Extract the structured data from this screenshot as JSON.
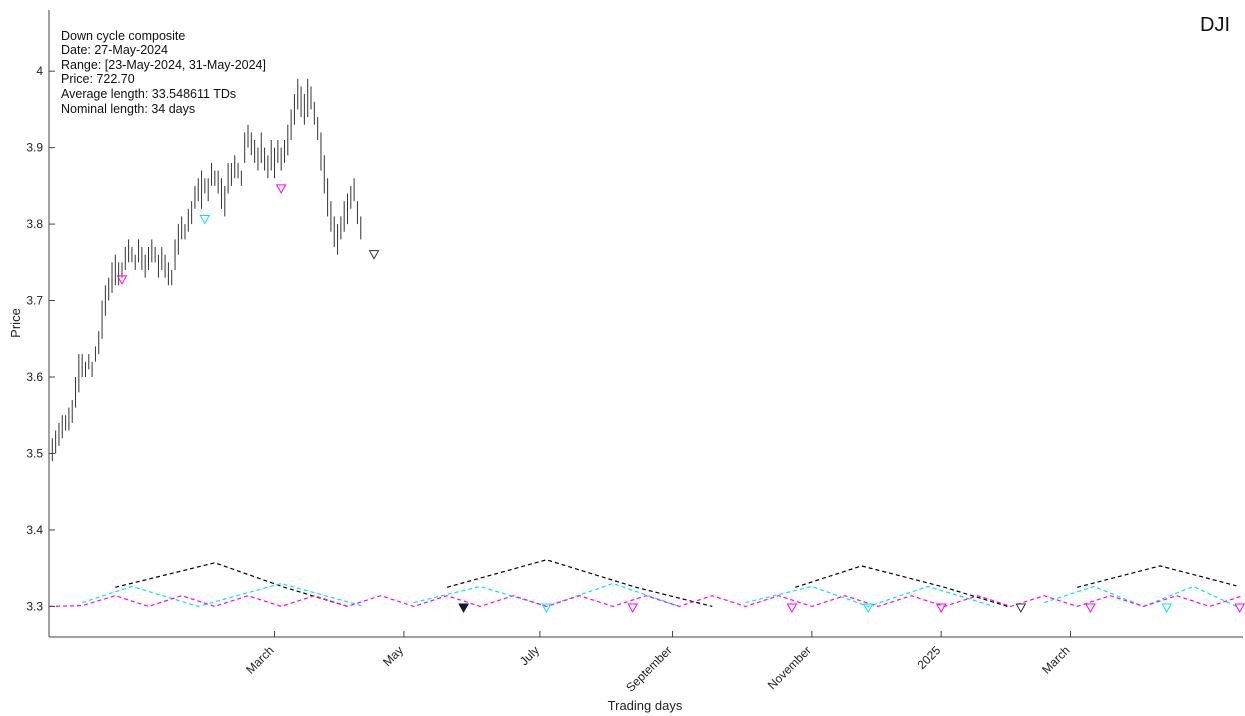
{
  "symbol": "DJI",
  "info_lines": [
    "Down cycle composite",
    "Date: 27-May-2024",
    "Range: [23-May-2024, 31-May-2024]",
    "Price: 722.70",
    "Average length: 33.548611 TDs",
    "Nominal length: 34 days"
  ],
  "colors": {
    "price": "#333333",
    "cycle_long": "#000000",
    "cycle_mid": "#00e5ff",
    "cycle_short": "#ff00ff",
    "filled_marker": "#0b1a3a"
  },
  "chart_data": {
    "type": "line",
    "xlabel": "Trading days",
    "ylabel": "Price",
    "ylim": [
      3.26,
      4.08
    ],
    "xlim": [
      0,
      360
    ],
    "yticks": [
      3.3,
      3.4,
      3.5,
      3.6,
      3.7,
      3.8,
      3.9,
      4
    ],
    "ytick_labels": [
      "3.3",
      "3.4",
      "3.5",
      "3.6",
      "3.7",
      "3.8",
      "3.9",
      "4"
    ],
    "xticks": [
      {
        "x": 68,
        "label": "March"
      },
      {
        "x": 107,
        "label": "May"
      },
      {
        "x": 148,
        "label": "July"
      },
      {
        "x": 188,
        "label": "September"
      },
      {
        "x": 230,
        "label": "November"
      },
      {
        "x": 269,
        "label": "2025"
      },
      {
        "x": 308,
        "label": "March"
      }
    ],
    "grid": false,
    "price_bars": [
      [
        1,
        3.49,
        3.52
      ],
      [
        2,
        3.5,
        3.53
      ],
      [
        3,
        3.51,
        3.54
      ],
      [
        4,
        3.52,
        3.55
      ],
      [
        5,
        3.53,
        3.55
      ],
      [
        6,
        3.53,
        3.56
      ],
      [
        7,
        3.54,
        3.57
      ],
      [
        8,
        3.56,
        3.6
      ],
      [
        9,
        3.58,
        3.63
      ],
      [
        10,
        3.6,
        3.63
      ],
      [
        11,
        3.6,
        3.62
      ],
      [
        12,
        3.61,
        3.63
      ],
      [
        13,
        3.6,
        3.62
      ],
      [
        14,
        3.62,
        3.64
      ],
      [
        15,
        3.63,
        3.66
      ],
      [
        16,
        3.65,
        3.7
      ],
      [
        17,
        3.68,
        3.72
      ],
      [
        18,
        3.7,
        3.73
      ],
      [
        19,
        3.71,
        3.75
      ],
      [
        20,
        3.72,
        3.76
      ],
      [
        21,
        3.72,
        3.75
      ],
      [
        22,
        3.73,
        3.75
      ],
      [
        23,
        3.74,
        3.77
      ],
      [
        24,
        3.75,
        3.78
      ],
      [
        25,
        3.75,
        3.77
      ],
      [
        26,
        3.74,
        3.76
      ],
      [
        27,
        3.75,
        3.78
      ],
      [
        28,
        3.74,
        3.77
      ],
      [
        29,
        3.73,
        3.76
      ],
      [
        30,
        3.74,
        3.77
      ],
      [
        31,
        3.75,
        3.78
      ],
      [
        32,
        3.75,
        3.77
      ],
      [
        33,
        3.73,
        3.76
      ],
      [
        34,
        3.74,
        3.77
      ],
      [
        35,
        3.73,
        3.76
      ],
      [
        36,
        3.72,
        3.75
      ],
      [
        37,
        3.72,
        3.74
      ],
      [
        38,
        3.74,
        3.78
      ],
      [
        39,
        3.76,
        3.8
      ],
      [
        40,
        3.78,
        3.81
      ],
      [
        41,
        3.78,
        3.8
      ],
      [
        42,
        3.79,
        3.82
      ],
      [
        43,
        3.8,
        3.83
      ],
      [
        44,
        3.82,
        3.85
      ],
      [
        45,
        3.83,
        3.86
      ],
      [
        46,
        3.82,
        3.87
      ],
      [
        47,
        3.84,
        3.86
      ],
      [
        48,
        3.83,
        3.86
      ],
      [
        49,
        3.85,
        3.88
      ],
      [
        50,
        3.85,
        3.87
      ],
      [
        51,
        3.84,
        3.87
      ],
      [
        52,
        3.82,
        3.86
      ],
      [
        53,
        3.81,
        3.85
      ],
      [
        54,
        3.84,
        3.88
      ],
      [
        55,
        3.85,
        3.88
      ],
      [
        56,
        3.86,
        3.89
      ],
      [
        57,
        3.86,
        3.88
      ],
      [
        58,
        3.85,
        3.87
      ],
      [
        59,
        3.88,
        3.92
      ],
      [
        60,
        3.9,
        3.93
      ],
      [
        61,
        3.89,
        3.92
      ],
      [
        62,
        3.88,
        3.91
      ],
      [
        63,
        3.87,
        3.9
      ],
      [
        64,
        3.88,
        3.92
      ],
      [
        65,
        3.87,
        3.9
      ],
      [
        66,
        3.86,
        3.89
      ],
      [
        67,
        3.87,
        3.91
      ],
      [
        68,
        3.86,
        3.9
      ],
      [
        69,
        3.88,
        3.91
      ],
      [
        70,
        3.87,
        3.9
      ],
      [
        71,
        3.88,
        3.91
      ],
      [
        72,
        3.89,
        3.93
      ],
      [
        73,
        3.91,
        3.95
      ],
      [
        74,
        3.93,
        3.97
      ],
      [
        75,
        3.95,
        3.99
      ],
      [
        76,
        3.94,
        3.98
      ],
      [
        77,
        3.93,
        3.97
      ],
      [
        78,
        3.94,
        3.99
      ],
      [
        79,
        3.95,
        3.98
      ],
      [
        80,
        3.93,
        3.96
      ],
      [
        81,
        3.91,
        3.94
      ],
      [
        82,
        3.87,
        3.92
      ],
      [
        83,
        3.84,
        3.89
      ],
      [
        84,
        3.81,
        3.86
      ],
      [
        85,
        3.79,
        3.83
      ],
      [
        86,
        3.77,
        3.81
      ],
      [
        87,
        3.76,
        3.8
      ],
      [
        88,
        3.78,
        3.81
      ],
      [
        89,
        3.79,
        3.83
      ],
      [
        90,
        3.8,
        3.84
      ],
      [
        91,
        3.82,
        3.85
      ],
      [
        92,
        3.83,
        3.86
      ],
      [
        93,
        3.8,
        3.83
      ],
      [
        94,
        3.78,
        3.81
      ]
    ],
    "cycles": [
      {
        "color": "#000000",
        "x": [
          20,
          50,
          71,
          90
        ],
        "y": [
          3.325,
          3.357,
          3.325,
          3.3
        ]
      },
      {
        "color": "#000000",
        "x": [
          120,
          150,
          177,
          200
        ],
        "y": [
          3.325,
          3.361,
          3.325,
          3.3
        ]
      },
      {
        "color": "#000000",
        "x": [
          225,
          245,
          270,
          289
        ],
        "y": [
          3.325,
          3.353,
          3.325,
          3.3
        ]
      },
      {
        "color": "#000000",
        "x": [
          310,
          335,
          358
        ],
        "y": [
          3.325,
          3.353,
          3.327
        ]
      },
      {
        "color": "#00e5ff",
        "x": [
          10,
          25,
          45,
          70,
          95
        ],
        "y": [
          3.305,
          3.326,
          3.3,
          3.33,
          3.3
        ]
      },
      {
        "color": "#00e5ff",
        "x": [
          110,
          130,
          150,
          170,
          190
        ],
        "y": [
          3.305,
          3.326,
          3.3,
          3.33,
          3.3
        ]
      },
      {
        "color": "#00e5ff",
        "x": [
          210,
          230,
          247,
          265,
          285
        ],
        "y": [
          3.305,
          3.326,
          3.3,
          3.326,
          3.3
        ]
      },
      {
        "color": "#00e5ff",
        "x": [
          300,
          315,
          330,
          345,
          358
        ],
        "y": [
          3.305,
          3.326,
          3.3,
          3.326,
          3.3
        ]
      },
      {
        "color": "#ff00ff",
        "x": [
          0,
          10,
          20,
          30,
          40,
          50,
          60,
          70,
          80,
          90,
          100,
          110,
          120,
          130,
          140,
          150,
          160,
          170,
          180,
          190,
          200,
          210,
          220,
          230,
          240,
          250,
          260,
          270,
          280,
          290,
          300,
          310,
          320,
          330,
          340,
          350,
          360
        ],
        "y": [
          3.3,
          3.301,
          3.314,
          3.3,
          3.314,
          3.3,
          3.314,
          3.3,
          3.314,
          3.3,
          3.314,
          3.3,
          3.314,
          3.3,
          3.314,
          3.3,
          3.314,
          3.3,
          3.314,
          3.3,
          3.314,
          3.3,
          3.314,
          3.3,
          3.314,
          3.3,
          3.314,
          3.3,
          3.314,
          3.3,
          3.314,
          3.3,
          3.314,
          3.3,
          3.314,
          3.3,
          3.314
        ]
      }
    ],
    "markers": [
      {
        "x": 22,
        "y": 3.727,
        "color": "#ff00ff",
        "filled": false
      },
      {
        "x": 47,
        "y": 3.806,
        "color": "#00e5ff",
        "filled": false
      },
      {
        "x": 70,
        "y": 3.846,
        "color": "#ff00ff",
        "filled": false
      },
      {
        "x": 98,
        "y": 3.76,
        "color": "#333333",
        "filled": false
      },
      {
        "x": 125,
        "y": 3.298,
        "color": "#0b1a3a",
        "filled": true
      },
      {
        "x": 150,
        "y": 3.298,
        "color": "#00e5ff",
        "filled": false
      },
      {
        "x": 176,
        "y": 3.298,
        "color": "#ff00ff",
        "filled": false
      },
      {
        "x": 224,
        "y": 3.298,
        "color": "#ff00ff",
        "filled": false
      },
      {
        "x": 247,
        "y": 3.298,
        "color": "#00e5ff",
        "filled": false
      },
      {
        "x": 269,
        "y": 3.298,
        "color": "#ff00ff",
        "filled": false
      },
      {
        "x": 293,
        "y": 3.298,
        "color": "#333333",
        "filled": false
      },
      {
        "x": 314,
        "y": 3.298,
        "color": "#ff00ff",
        "filled": false
      },
      {
        "x": 337,
        "y": 3.298,
        "color": "#00e5ff",
        "filled": false
      },
      {
        "x": 359,
        "y": 3.298,
        "color": "#ff00ff",
        "filled": false
      }
    ]
  }
}
